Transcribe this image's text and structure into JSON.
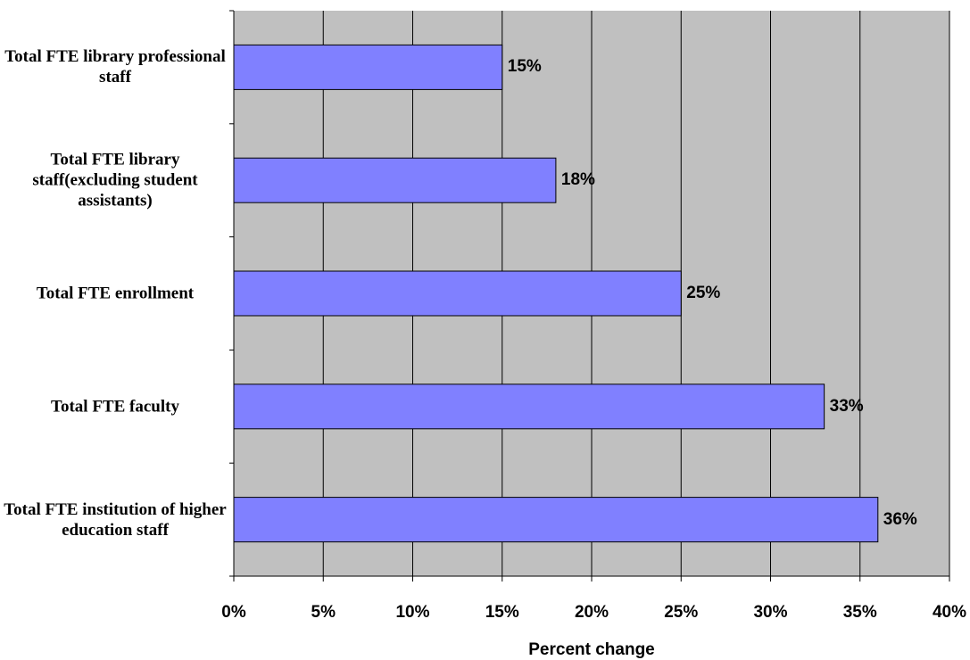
{
  "chart_data": {
    "type": "bar",
    "orientation": "horizontal",
    "categories": [
      "Total FTE library professional staff",
      "Total FTE library staff(excluding student assistants)",
      "Total FTE enrollment",
      "Total FTE faculty",
      "Total FTE institution of higher education staff"
    ],
    "values": [
      15,
      18,
      25,
      33,
      36
    ],
    "data_labels": [
      "15%",
      "18%",
      "25%",
      "33%",
      "36%"
    ],
    "xlabel": "Percent change",
    "ylabel": "",
    "title": "",
    "xlim": [
      0,
      40
    ],
    "xticks": [
      0,
      5,
      10,
      15,
      20,
      25,
      30,
      35,
      40
    ],
    "xtick_labels": [
      "0%",
      "5%",
      "10%",
      "15%",
      "20%",
      "25%",
      "30%",
      "35%",
      "40%"
    ],
    "grid": "vertical",
    "legend": "none",
    "colors": {
      "bar_fill": "#8080ff",
      "plot_background": "#c0c0c0",
      "gridline": "#000000"
    }
  }
}
